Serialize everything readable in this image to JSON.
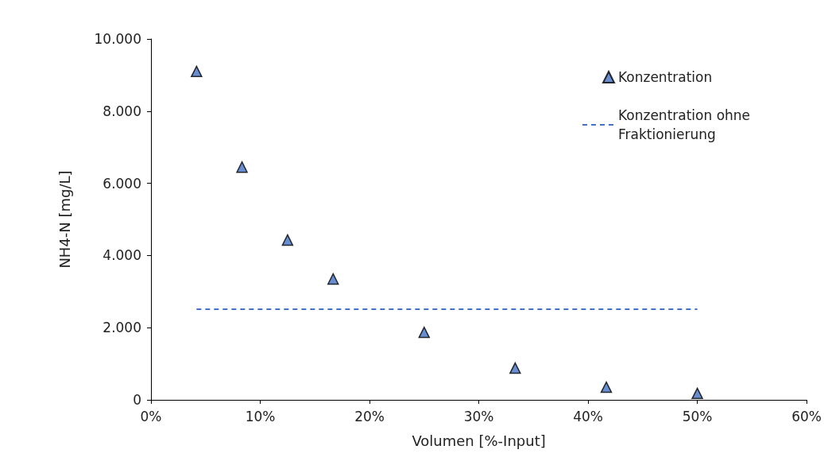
{
  "chart_data": {
    "type": "scatter",
    "xlabel": "Volumen [%-Input]",
    "ylabel": "NH4-N [mg/L]",
    "x": [
      4.17,
      8.33,
      12.5,
      16.67,
      25,
      33.33,
      41.67,
      50
    ],
    "series": [
      {
        "name": "Konzentration",
        "type": "scatter",
        "color": "#4472c4",
        "marker": "triangle",
        "values": [
          9100,
          6450,
          4430,
          3350,
          1870,
          880,
          350,
          180
        ]
      },
      {
        "name": "Konzentration ohne Fraktionierung",
        "type": "line",
        "color": "#4472c4",
        "marker": "none",
        "line_style": "dashed",
        "x": [
          4.17,
          50
        ],
        "values": [
          2510,
          2510
        ]
      }
    ],
    "xlim": [
      0,
      60
    ],
    "xticks": [
      {
        "value": 0,
        "label": "0%"
      },
      {
        "value": 10,
        "label": "10%"
      },
      {
        "value": 20,
        "label": "20%"
      },
      {
        "value": 30,
        "label": "30%"
      },
      {
        "value": 40,
        "label": "40%"
      },
      {
        "value": 50,
        "label": "50%"
      },
      {
        "value": 60,
        "label": "60%"
      }
    ],
    "ylim": [
      0,
      10000
    ],
    "yticks": [
      {
        "value": 0,
        "label": "0"
      },
      {
        "value": 2000,
        "label": "2.000"
      },
      {
        "value": 4000,
        "label": "4.000"
      },
      {
        "value": 6000,
        "label": "6.000"
      },
      {
        "value": 8000,
        "label": "8.000"
      },
      {
        "value": 10000,
        "label": "10.000"
      }
    ],
    "grid": false,
    "legend": "top right"
  }
}
